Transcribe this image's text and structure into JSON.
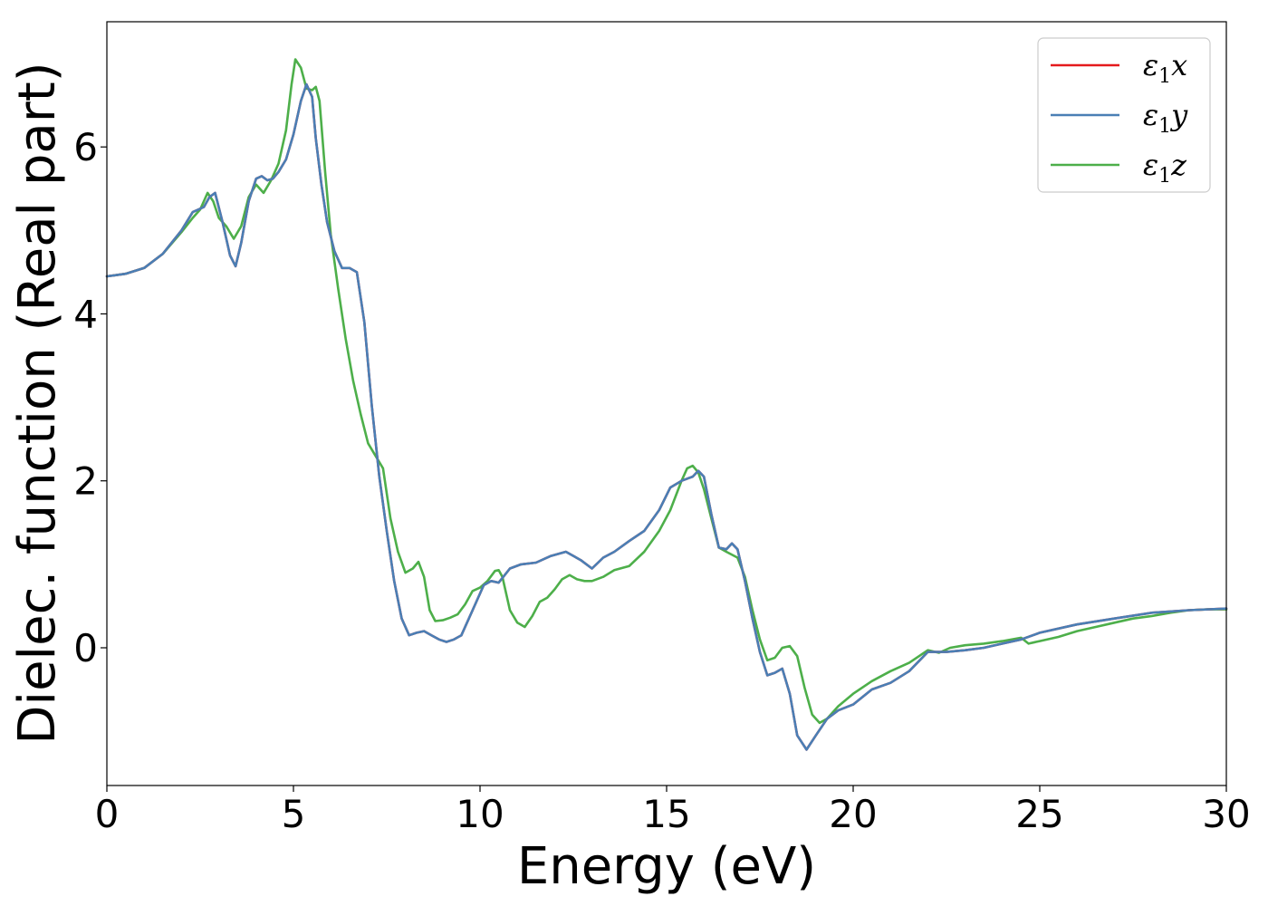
{
  "chart_data": {
    "type": "line",
    "title": "",
    "xlabel": "Energy (eV)",
    "ylabel": "Dielec. function (Real part)",
    "xlim": [
      0,
      30
    ],
    "ylim": [
      -1.65,
      7.5
    ],
    "xticks": [
      0,
      5,
      10,
      15,
      20,
      25,
      30
    ],
    "yticks": [
      0,
      2,
      4,
      6
    ],
    "grid": false,
    "legend_position": "top-right",
    "series": [
      {
        "name": "ε1x",
        "legend_symbol": "ε",
        "legend_sub": "1",
        "legend_axis": "x",
        "color": "#e41a1c",
        "x": [
          0,
          0.5,
          1.0,
          1.5,
          2.0,
          2.3,
          2.6,
          2.75,
          2.9,
          3.1,
          3.3,
          3.45,
          3.6,
          3.8,
          4.0,
          4.15,
          4.3,
          4.45,
          4.6,
          4.8,
          5.0,
          5.2,
          5.35,
          5.5,
          5.6,
          5.75,
          5.9,
          6.1,
          6.3,
          6.5,
          6.7,
          6.9,
          7.1,
          7.3,
          7.5,
          7.7,
          7.9,
          8.1,
          8.3,
          8.5,
          8.7,
          8.9,
          9.1,
          9.3,
          9.5,
          9.8,
          10.1,
          10.3,
          10.5,
          10.8,
          11.1,
          11.5,
          11.9,
          12.3,
          12.7,
          13.0,
          13.3,
          13.6,
          14.0,
          14.4,
          14.8,
          15.1,
          15.4,
          15.7,
          15.85,
          16.0,
          16.2,
          16.4,
          16.6,
          16.75,
          16.9,
          17.1,
          17.3,
          17.5,
          17.7,
          17.9,
          18.1,
          18.3,
          18.5,
          18.75,
          19.0,
          19.3,
          19.6,
          20.0,
          20.5,
          21.0,
          21.5,
          22.0,
          22.5,
          23.0,
          23.5,
          24.0,
          24.5,
          25.0,
          26.0,
          27.0,
          28.0,
          29.0,
          30.0
        ],
        "y": [
          4.45,
          4.48,
          4.55,
          4.72,
          5.0,
          5.22,
          5.28,
          5.4,
          5.45,
          5.1,
          4.7,
          4.57,
          4.85,
          5.35,
          5.62,
          5.65,
          5.6,
          5.62,
          5.7,
          5.85,
          6.15,
          6.55,
          6.75,
          6.6,
          6.1,
          5.55,
          5.1,
          4.75,
          4.55,
          4.55,
          4.5,
          3.9,
          2.9,
          2.05,
          1.4,
          0.8,
          0.35,
          0.15,
          0.18,
          0.2,
          0.15,
          0.1,
          0.07,
          0.1,
          0.15,
          0.45,
          0.75,
          0.8,
          0.78,
          0.95,
          1.0,
          1.02,
          1.1,
          1.15,
          1.05,
          0.95,
          1.08,
          1.15,
          1.28,
          1.4,
          1.65,
          1.92,
          2.0,
          2.05,
          2.12,
          2.05,
          1.6,
          1.2,
          1.18,
          1.25,
          1.18,
          0.8,
          0.35,
          -0.05,
          -0.33,
          -0.3,
          -0.25,
          -0.55,
          -1.05,
          -1.22,
          -1.05,
          -0.85,
          -0.75,
          -0.68,
          -0.5,
          -0.42,
          -0.28,
          -0.05,
          -0.05,
          -0.03,
          0.0,
          0.05,
          0.1,
          0.18,
          0.28,
          0.35,
          0.42,
          0.45,
          0.47
        ]
      },
      {
        "name": "ε1y",
        "legend_symbol": "ε",
        "legend_sub": "1",
        "legend_axis": "y",
        "color": "#4a7fb5",
        "x": [
          0,
          0.5,
          1.0,
          1.5,
          2.0,
          2.3,
          2.6,
          2.75,
          2.9,
          3.1,
          3.3,
          3.45,
          3.6,
          3.8,
          4.0,
          4.15,
          4.3,
          4.45,
          4.6,
          4.8,
          5.0,
          5.2,
          5.35,
          5.5,
          5.6,
          5.75,
          5.9,
          6.1,
          6.3,
          6.5,
          6.7,
          6.9,
          7.1,
          7.3,
          7.5,
          7.7,
          7.9,
          8.1,
          8.3,
          8.5,
          8.7,
          8.9,
          9.1,
          9.3,
          9.5,
          9.8,
          10.1,
          10.3,
          10.5,
          10.8,
          11.1,
          11.5,
          11.9,
          12.3,
          12.7,
          13.0,
          13.3,
          13.6,
          14.0,
          14.4,
          14.8,
          15.1,
          15.4,
          15.7,
          15.85,
          16.0,
          16.2,
          16.4,
          16.6,
          16.75,
          16.9,
          17.1,
          17.3,
          17.5,
          17.7,
          17.9,
          18.1,
          18.3,
          18.5,
          18.75,
          19.0,
          19.3,
          19.6,
          20.0,
          20.5,
          21.0,
          21.5,
          22.0,
          22.5,
          23.0,
          23.5,
          24.0,
          24.5,
          25.0,
          26.0,
          27.0,
          28.0,
          29.0,
          30.0
        ],
        "y": [
          4.45,
          4.48,
          4.55,
          4.72,
          5.0,
          5.22,
          5.28,
          5.4,
          5.45,
          5.1,
          4.7,
          4.57,
          4.85,
          5.35,
          5.62,
          5.65,
          5.6,
          5.62,
          5.7,
          5.85,
          6.15,
          6.55,
          6.75,
          6.6,
          6.1,
          5.55,
          5.1,
          4.75,
          4.55,
          4.55,
          4.5,
          3.9,
          2.9,
          2.05,
          1.4,
          0.8,
          0.35,
          0.15,
          0.18,
          0.2,
          0.15,
          0.1,
          0.07,
          0.1,
          0.15,
          0.45,
          0.75,
          0.8,
          0.78,
          0.95,
          1.0,
          1.02,
          1.1,
          1.15,
          1.05,
          0.95,
          1.08,
          1.15,
          1.28,
          1.4,
          1.65,
          1.92,
          2.0,
          2.05,
          2.12,
          2.05,
          1.6,
          1.2,
          1.18,
          1.25,
          1.18,
          0.8,
          0.35,
          -0.05,
          -0.33,
          -0.3,
          -0.25,
          -0.55,
          -1.05,
          -1.22,
          -1.05,
          -0.85,
          -0.75,
          -0.68,
          -0.5,
          -0.42,
          -0.28,
          -0.05,
          -0.05,
          -0.03,
          0.0,
          0.05,
          0.1,
          0.18,
          0.28,
          0.35,
          0.42,
          0.45,
          0.47
        ]
      },
      {
        "name": "ε1z",
        "legend_symbol": "ε",
        "legend_sub": "1",
        "legend_axis": "z",
        "color": "#4daf4a",
        "x": [
          0,
          0.5,
          1.0,
          1.5,
          2.0,
          2.3,
          2.5,
          2.7,
          2.85,
          3.0,
          3.2,
          3.4,
          3.6,
          3.8,
          4.0,
          4.2,
          4.4,
          4.6,
          4.8,
          4.95,
          5.05,
          5.2,
          5.35,
          5.5,
          5.6,
          5.7,
          5.85,
          6.0,
          6.2,
          6.4,
          6.6,
          6.8,
          7.0,
          7.2,
          7.4,
          7.6,
          7.8,
          8.0,
          8.2,
          8.35,
          8.5,
          8.65,
          8.8,
          9.0,
          9.2,
          9.4,
          9.6,
          9.8,
          10.0,
          10.2,
          10.4,
          10.5,
          10.6,
          10.8,
          11.0,
          11.2,
          11.4,
          11.6,
          11.8,
          12.0,
          12.2,
          12.4,
          12.6,
          12.8,
          13.0,
          13.3,
          13.6,
          14.0,
          14.4,
          14.8,
          15.1,
          15.4,
          15.55,
          15.7,
          15.85,
          16.0,
          16.2,
          16.4,
          16.6,
          16.9,
          17.1,
          17.3,
          17.5,
          17.7,
          17.9,
          18.1,
          18.3,
          18.5,
          18.7,
          18.9,
          19.1,
          19.3,
          19.6,
          20.0,
          20.5,
          21.0,
          21.5,
          22.0,
          22.3,
          22.6,
          23.0,
          23.5,
          24.0,
          24.5,
          24.7,
          25.0,
          25.5,
          26.0,
          26.5,
          27.0,
          27.5,
          28.0,
          28.5,
          29.0,
          29.5,
          30.0
        ],
        "y": [
          4.45,
          4.48,
          4.55,
          4.72,
          4.98,
          5.15,
          5.25,
          5.45,
          5.35,
          5.15,
          5.05,
          4.9,
          5.05,
          5.4,
          5.55,
          5.45,
          5.6,
          5.8,
          6.2,
          6.75,
          7.05,
          6.95,
          6.7,
          6.68,
          6.72,
          6.55,
          5.7,
          4.95,
          4.3,
          3.7,
          3.2,
          2.8,
          2.45,
          2.3,
          2.15,
          1.55,
          1.15,
          0.9,
          0.95,
          1.03,
          0.85,
          0.45,
          0.32,
          0.33,
          0.36,
          0.4,
          0.52,
          0.68,
          0.72,
          0.8,
          0.92,
          0.93,
          0.85,
          0.45,
          0.3,
          0.25,
          0.38,
          0.55,
          0.6,
          0.7,
          0.82,
          0.87,
          0.82,
          0.8,
          0.8,
          0.85,
          0.93,
          0.98,
          1.15,
          1.4,
          1.65,
          2.0,
          2.15,
          2.18,
          2.1,
          1.9,
          1.55,
          1.2,
          1.15,
          1.08,
          0.85,
          0.45,
          0.1,
          -0.15,
          -0.12,
          0.0,
          0.02,
          -0.1,
          -0.48,
          -0.8,
          -0.9,
          -0.85,
          -0.7,
          -0.55,
          -0.4,
          -0.28,
          -0.18,
          -0.03,
          -0.06,
          0.0,
          0.03,
          0.05,
          0.08,
          0.12,
          0.05,
          0.08,
          0.13,
          0.2,
          0.25,
          0.3,
          0.35,
          0.38,
          0.42,
          0.45,
          0.46,
          0.46
        ]
      }
    ]
  }
}
